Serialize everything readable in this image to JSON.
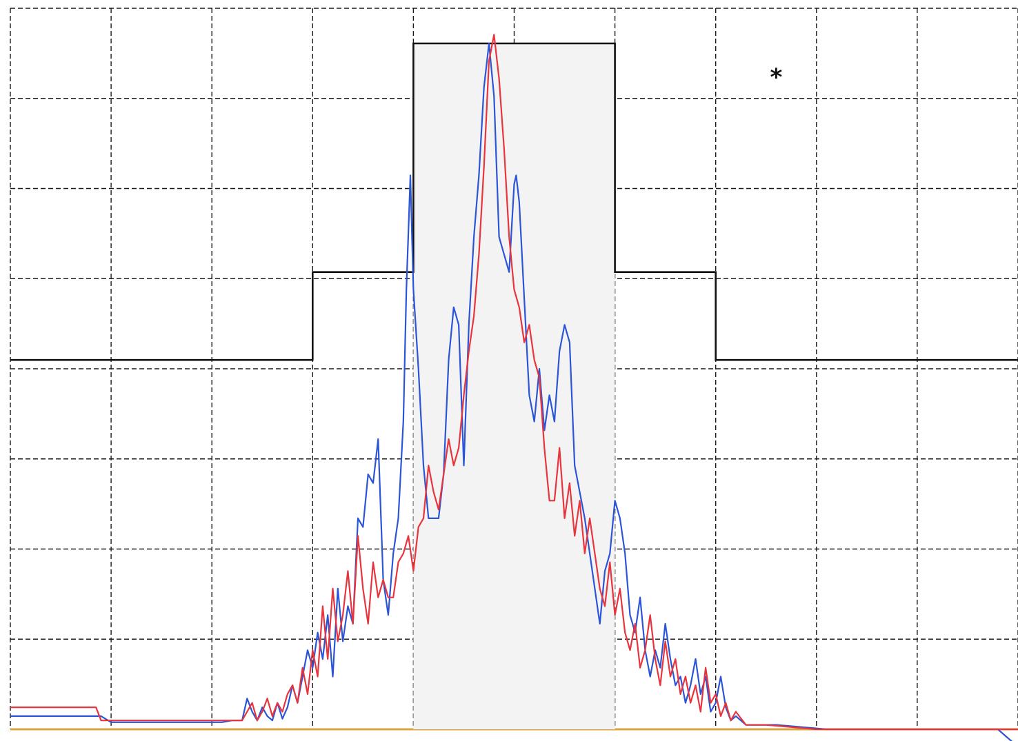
{
  "chart_data": {
    "type": "line",
    "title": "",
    "xlabel": "",
    "ylabel": "",
    "xlim": [
      0,
      10
    ],
    "ylim": [
      0,
      8.2
    ],
    "grid": true,
    "annotations": [
      {
        "text": "*",
        "x": 7.6,
        "y": 7.5
      }
    ],
    "envelope": {
      "x": [
        0,
        3.0,
        3.0,
        4.0,
        4.0,
        6.0,
        6.0,
        7.0,
        7.0,
        10
      ],
      "y": [
        4.2,
        4.2,
        5.2,
        5.2,
        7.8,
        7.8,
        5.2,
        5.2,
        4.2,
        4.2
      ]
    },
    "series": [
      {
        "color": "#2b55d6",
        "x": [
          0.0,
          0.9,
          1.0,
          2.1,
          2.2,
          2.3,
          2.35,
          2.4,
          2.45,
          2.5,
          2.55,
          2.6,
          2.65,
          2.7,
          2.75,
          2.8,
          2.85,
          2.9,
          2.95,
          3.0,
          3.05,
          3.1,
          3.15,
          3.2,
          3.25,
          3.3,
          3.35,
          3.4,
          3.45,
          3.5,
          3.55,
          3.6,
          3.65,
          3.7,
          3.75,
          3.8,
          3.85,
          3.9,
          3.93,
          3.97,
          4.0,
          4.05,
          4.1,
          4.15,
          4.2,
          4.25,
          4.3,
          4.35,
          4.4,
          4.45,
          4.5,
          4.55,
          4.6,
          4.65,
          4.7,
          4.75,
          4.8,
          4.85,
          4.9,
          4.95,
          5.0,
          5.02,
          5.05,
          5.1,
          5.15,
          5.2,
          5.25,
          5.3,
          5.35,
          5.4,
          5.45,
          5.5,
          5.55,
          5.6,
          5.65,
          5.7,
          5.75,
          5.8,
          5.85,
          5.9,
          5.95,
          6.0,
          6.05,
          6.1,
          6.15,
          6.2,
          6.25,
          6.3,
          6.35,
          6.4,
          6.45,
          6.5,
          6.55,
          6.6,
          6.65,
          6.7,
          6.75,
          6.8,
          6.85,
          6.9,
          6.95,
          7.0,
          7.05,
          7.1,
          7.15,
          7.2,
          7.3,
          7.4,
          7.6,
          8.1,
          9.0,
          9.8,
          10.0
        ],
        "y": [
          0.15,
          0.15,
          0.08,
          0.08,
          0.1,
          0.1,
          0.35,
          0.2,
          0.1,
          0.25,
          0.15,
          0.1,
          0.3,
          0.12,
          0.25,
          0.5,
          0.3,
          0.6,
          0.9,
          0.7,
          1.1,
          0.8,
          1.3,
          0.6,
          1.6,
          1.0,
          1.4,
          1.2,
          2.4,
          2.3,
          2.9,
          2.8,
          3.3,
          1.7,
          1.3,
          2.0,
          2.4,
          3.5,
          5.0,
          6.3,
          5.0,
          4.1,
          3.0,
          2.4,
          2.4,
          2.4,
          2.9,
          4.2,
          4.8,
          4.6,
          3.0,
          4.6,
          5.6,
          6.3,
          7.3,
          7.8,
          7.2,
          5.6,
          5.4,
          5.2,
          6.2,
          6.3,
          6.0,
          4.9,
          3.8,
          3.5,
          4.1,
          3.4,
          3.8,
          3.5,
          4.3,
          4.6,
          4.4,
          3.0,
          2.7,
          2.4,
          2.0,
          1.6,
          1.2,
          1.8,
          2.0,
          2.6,
          2.4,
          2.0,
          1.3,
          1.1,
          1.5,
          0.9,
          0.6,
          0.9,
          0.7,
          1.2,
          0.8,
          0.5,
          0.6,
          0.3,
          0.5,
          0.8,
          0.4,
          0.6,
          0.2,
          0.3,
          0.6,
          0.25,
          0.1,
          0.15,
          0.05,
          0.05,
          0.05,
          0.0,
          0.0,
          0.0,
          -0.2
        ]
      },
      {
        "color": "#e8343c",
        "x": [
          0.0,
          0.85,
          0.9,
          2.2,
          2.3,
          2.4,
          2.45,
          2.5,
          2.55,
          2.6,
          2.65,
          2.7,
          2.75,
          2.8,
          2.85,
          2.9,
          2.95,
          3.0,
          3.05,
          3.1,
          3.15,
          3.2,
          3.25,
          3.3,
          3.35,
          3.4,
          3.45,
          3.5,
          3.55,
          3.6,
          3.65,
          3.7,
          3.75,
          3.8,
          3.85,
          3.9,
          3.95,
          4.0,
          4.05,
          4.1,
          4.15,
          4.2,
          4.25,
          4.3,
          4.35,
          4.4,
          4.45,
          4.5,
          4.55,
          4.6,
          4.65,
          4.7,
          4.75,
          4.8,
          4.85,
          4.9,
          4.95,
          5.0,
          5.05,
          5.1,
          5.15,
          5.2,
          5.25,
          5.3,
          5.35,
          5.4,
          5.45,
          5.5,
          5.55,
          5.6,
          5.65,
          5.7,
          5.75,
          5.8,
          5.85,
          5.9,
          5.95,
          6.0,
          6.05,
          6.1,
          6.15,
          6.2,
          6.25,
          6.3,
          6.35,
          6.4,
          6.45,
          6.5,
          6.55,
          6.6,
          6.65,
          6.7,
          6.75,
          6.8,
          6.85,
          6.9,
          6.95,
          7.0,
          7.05,
          7.1,
          7.15,
          7.2,
          7.3,
          7.5,
          8.0,
          9.0,
          10.0
        ],
        "y": [
          0.25,
          0.25,
          0.1,
          0.1,
          0.1,
          0.3,
          0.1,
          0.2,
          0.35,
          0.15,
          0.3,
          0.2,
          0.4,
          0.5,
          0.3,
          0.7,
          0.4,
          0.9,
          0.6,
          1.4,
          0.8,
          1.6,
          1.0,
          1.3,
          1.8,
          1.2,
          2.2,
          1.6,
          1.2,
          1.9,
          1.5,
          1.7,
          1.5,
          1.5,
          1.9,
          2.0,
          2.2,
          1.8,
          2.3,
          2.4,
          3.0,
          2.7,
          2.5,
          2.9,
          3.3,
          3.0,
          3.2,
          3.8,
          4.3,
          4.7,
          5.4,
          6.4,
          7.6,
          7.9,
          7.4,
          6.6,
          5.6,
          5.0,
          4.8,
          4.4,
          4.6,
          4.2,
          4.0,
          3.2,
          2.6,
          2.6,
          3.2,
          2.4,
          2.8,
          2.2,
          2.6,
          2.0,
          2.4,
          2.0,
          1.6,
          1.4,
          1.9,
          1.3,
          1.6,
          1.1,
          0.9,
          1.2,
          0.7,
          0.9,
          1.3,
          0.8,
          0.5,
          1.0,
          0.6,
          0.8,
          0.4,
          0.6,
          0.3,
          0.5,
          0.2,
          0.7,
          0.3,
          0.4,
          0.15,
          0.3,
          0.1,
          0.2,
          0.05,
          0.05,
          0.0,
          0.0,
          0.0
        ]
      }
    ]
  }
}
